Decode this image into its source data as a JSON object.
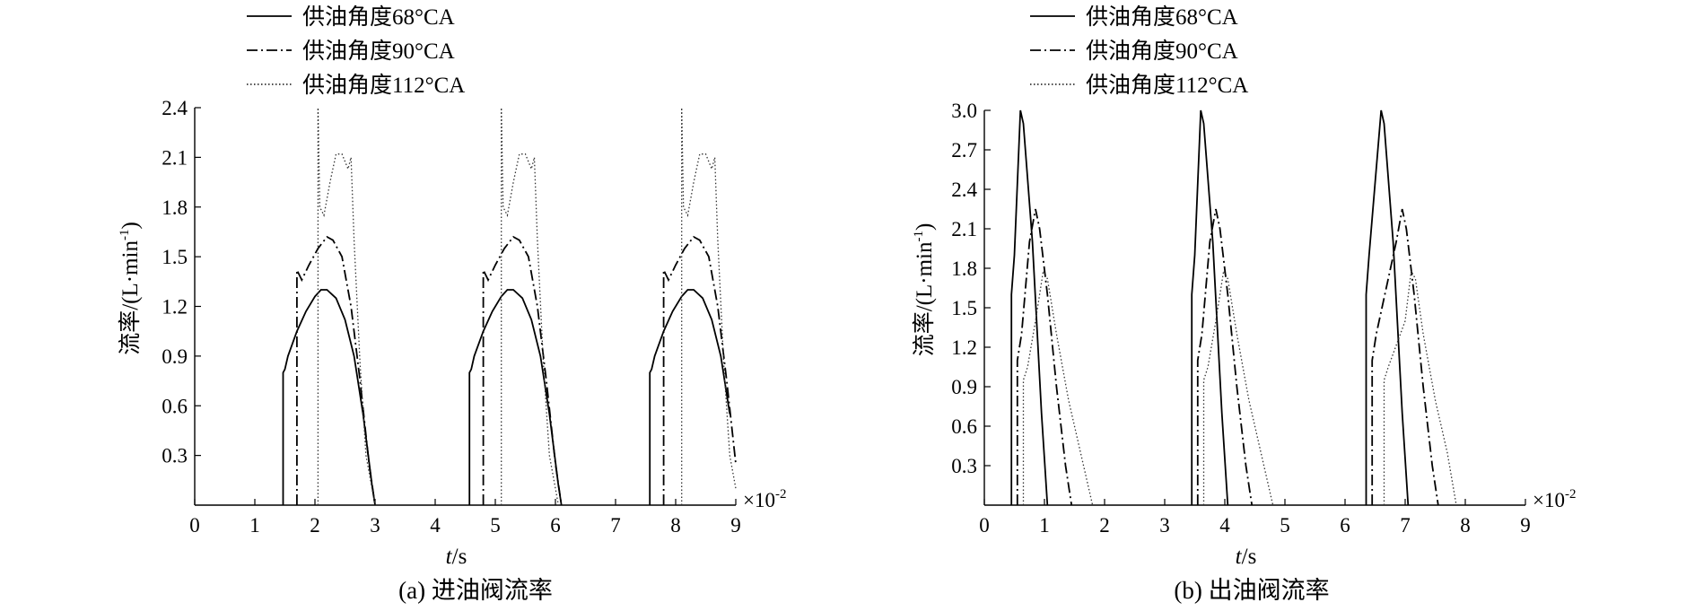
{
  "figure_caption_hidden": "",
  "chart_data": [
    {
      "type": "line",
      "caption": "(a) 进油阀流率",
      "xlabel_italic": "t",
      "xlabel_unit": "/s",
      "ylabel_prefix": "流率/(L·min",
      "ylabel_sup": "-1",
      "ylabel_suffix": ")",
      "x_multiplier_base": "×10",
      "x_multiplier_exp": "-2",
      "xlim": [
        0,
        9
      ],
      "ylim": [
        0,
        2.4
      ],
      "xticks": [
        "0",
        "1",
        "2",
        "3",
        "4",
        "5",
        "6",
        "7",
        "8",
        "9"
      ],
      "yticks": [
        "0.3",
        "0.6",
        "0.9",
        "1.2",
        "1.5",
        "1.8",
        "2.1",
        "2.4"
      ],
      "ytick_values": [
        0.3,
        0.6,
        0.9,
        1.2,
        1.5,
        1.8,
        2.1,
        2.4
      ],
      "series": [
        {
          "name": "供油角度68°CA",
          "style": "solid",
          "color": "#000000",
          "cycles": [
            [
              [
                1.47,
                0
              ],
              [
                1.47,
                0.8
              ],
              [
                1.5,
                0.82
              ],
              [
                1.55,
                0.9
              ],
              [
                1.7,
                1.05
              ],
              [
                1.85,
                1.17
              ],
              [
                2.0,
                1.26
              ],
              [
                2.1,
                1.3
              ],
              [
                2.2,
                1.3
              ],
              [
                2.35,
                1.25
              ],
              [
                2.5,
                1.12
              ],
              [
                2.65,
                0.9
              ],
              [
                2.8,
                0.55
              ],
              [
                2.95,
                0.12
              ],
              [
                3.0,
                0
              ]
            ],
            [
              [
                4.57,
                0
              ],
              [
                4.57,
                0.8
              ],
              [
                4.6,
                0.82
              ],
              [
                4.65,
                0.9
              ],
              [
                4.8,
                1.05
              ],
              [
                4.95,
                1.17
              ],
              [
                5.1,
                1.26
              ],
              [
                5.2,
                1.3
              ],
              [
                5.3,
                1.3
              ],
              [
                5.45,
                1.25
              ],
              [
                5.6,
                1.12
              ],
              [
                5.75,
                0.9
              ],
              [
                5.9,
                0.55
              ],
              [
                6.05,
                0.12
              ],
              [
                6.1,
                0
              ]
            ],
            [
              [
                7.57,
                0
              ],
              [
                7.57,
                0.8
              ],
              [
                7.6,
                0.82
              ],
              [
                7.65,
                0.9
              ],
              [
                7.8,
                1.05
              ],
              [
                7.95,
                1.17
              ],
              [
                8.1,
                1.26
              ],
              [
                8.2,
                1.3
              ],
              [
                8.3,
                1.3
              ],
              [
                8.45,
                1.25
              ],
              [
                8.6,
                1.12
              ],
              [
                8.75,
                0.9
              ],
              [
                8.9,
                0.55
              ],
              [
                9.05,
                0.12
              ],
              [
                9.1,
                0
              ]
            ]
          ]
        },
        {
          "name": "供油角度90°CA",
          "style": "dashdot",
          "color": "#000000",
          "cycles": [
            [
              [
                1.7,
                0
              ],
              [
                1.7,
                1.42
              ],
              [
                1.78,
                1.36
              ],
              [
                1.9,
                1.45
              ],
              [
                2.05,
                1.55
              ],
              [
                2.2,
                1.62
              ],
              [
                2.3,
                1.6
              ],
              [
                2.45,
                1.5
              ],
              [
                2.6,
                1.2
              ],
              [
                2.75,
                0.75
              ],
              [
                2.9,
                0.25
              ],
              [
                3.0,
                0
              ]
            ],
            [
              [
                4.8,
                0
              ],
              [
                4.8,
                1.42
              ],
              [
                4.88,
                1.36
              ],
              [
                5.0,
                1.45
              ],
              [
                5.15,
                1.55
              ],
              [
                5.3,
                1.62
              ],
              [
                5.4,
                1.6
              ],
              [
                5.55,
                1.5
              ],
              [
                5.7,
                1.2
              ],
              [
                5.85,
                0.75
              ],
              [
                6.0,
                0.25
              ],
              [
                6.1,
                0
              ]
            ],
            [
              [
                7.8,
                0
              ],
              [
                7.8,
                1.42
              ],
              [
                7.88,
                1.36
              ],
              [
                8.0,
                1.45
              ],
              [
                8.15,
                1.55
              ],
              [
                8.3,
                1.62
              ],
              [
                8.4,
                1.6
              ],
              [
                8.55,
                1.5
              ],
              [
                8.7,
                1.2
              ],
              [
                8.85,
                0.75
              ],
              [
                9.0,
                0.25
              ],
              [
                9.1,
                0
              ]
            ]
          ]
        },
        {
          "name": "供油角度112°CA",
          "style": "dotted",
          "color": "#333333",
          "cycles": [
            [
              [
                2.05,
                0
              ],
              [
                2.05,
                2.4
              ],
              [
                2.08,
                1.8
              ],
              [
                2.15,
                1.75
              ],
              [
                2.25,
                1.95
              ],
              [
                2.35,
                2.12
              ],
              [
                2.45,
                2.12
              ],
              [
                2.55,
                2.03
              ],
              [
                2.6,
                2.1
              ],
              [
                2.65,
                1.6
              ],
              [
                2.75,
                0.85
              ],
              [
                2.85,
                0.3
              ],
              [
                2.95,
                0.1
              ],
              [
                3.0,
                0
              ]
            ],
            [
              [
                5.1,
                0
              ],
              [
                5.1,
                2.4
              ],
              [
                5.13,
                1.8
              ],
              [
                5.2,
                1.75
              ],
              [
                5.3,
                1.95
              ],
              [
                5.4,
                2.12
              ],
              [
                5.5,
                2.12
              ],
              [
                5.6,
                2.03
              ],
              [
                5.65,
                2.1
              ],
              [
                5.7,
                1.6
              ],
              [
                5.8,
                0.85
              ],
              [
                5.9,
                0.3
              ],
              [
                6.0,
                0.1
              ],
              [
                6.05,
                0
              ]
            ],
            [
              [
                8.1,
                0
              ],
              [
                8.1,
                2.4
              ],
              [
                8.13,
                1.8
              ],
              [
                8.2,
                1.75
              ],
              [
                8.3,
                1.95
              ],
              [
                8.4,
                2.12
              ],
              [
                8.5,
                2.12
              ],
              [
                8.6,
                2.03
              ],
              [
                8.65,
                2.1
              ],
              [
                8.7,
                1.6
              ],
              [
                8.8,
                0.85
              ],
              [
                8.9,
                0.3
              ],
              [
                9.0,
                0.1
              ],
              [
                9.05,
                0
              ]
            ]
          ]
        }
      ]
    },
    {
      "type": "line",
      "caption": "(b) 出油阀流率",
      "xlabel_italic": "t",
      "xlabel_unit": "/s",
      "ylabel_prefix": "流率/(L·min",
      "ylabel_sup": "-1",
      "ylabel_suffix": ")",
      "x_multiplier_base": "×10",
      "x_multiplier_exp": "-2",
      "xlim": [
        0,
        9
      ],
      "ylim": [
        0,
        3.0
      ],
      "xticks": [
        "0",
        "1",
        "2",
        "3",
        "4",
        "5",
        "6",
        "7",
        "8",
        "9"
      ],
      "yticks": [
        "0.3",
        "0.6",
        "0.9",
        "1.2",
        "1.5",
        "1.8",
        "2.1",
        "2.4",
        "2.7",
        "3.0"
      ],
      "ytick_values": [
        0.3,
        0.6,
        0.9,
        1.2,
        1.5,
        1.8,
        2.1,
        2.4,
        2.7,
        3.0
      ],
      "series": [
        {
          "name": "供油角度68°CA",
          "style": "solid",
          "color": "#000000",
          "cycles": [
            [
              [
                0.45,
                0
              ],
              [
                0.45,
                1.6
              ],
              [
                0.5,
                1.9
              ],
              [
                0.6,
                3.0
              ],
              [
                0.65,
                2.9
              ],
              [
                0.8,
                2.0
              ],
              [
                0.95,
                0.7
              ],
              [
                1.05,
                0
              ]
            ],
            [
              [
                3.45,
                0
              ],
              [
                3.45,
                1.6
              ],
              [
                3.5,
                1.9
              ],
              [
                3.6,
                3.0
              ],
              [
                3.65,
                2.9
              ],
              [
                3.8,
                2.0
              ],
              [
                3.95,
                0.7
              ],
              [
                4.05,
                0
              ]
            ],
            [
              [
                6.35,
                0
              ],
              [
                6.35,
                1.6
              ],
              [
                6.4,
                1.9
              ],
              [
                6.6,
                3.0
              ],
              [
                6.65,
                2.9
              ],
              [
                6.8,
                2.0
              ],
              [
                6.95,
                0.7
              ],
              [
                7.05,
                0
              ]
            ]
          ]
        },
        {
          "name": "供油角度90°CA",
          "style": "dashdot",
          "color": "#000000",
          "cycles": [
            [
              [
                0.55,
                0
              ],
              [
                0.55,
                1.1
              ],
              [
                0.62,
                1.3
              ],
              [
                0.75,
                2.0
              ],
              [
                0.85,
                2.25
              ],
              [
                0.92,
                2.1
              ],
              [
                1.05,
                1.6
              ],
              [
                1.2,
                0.9
              ],
              [
                1.35,
                0.3
              ],
              [
                1.45,
                0
              ]
            ],
            [
              [
                3.55,
                0
              ],
              [
                3.55,
                1.1
              ],
              [
                3.62,
                1.3
              ],
              [
                3.75,
                2.0
              ],
              [
                3.85,
                2.25
              ],
              [
                3.92,
                2.1
              ],
              [
                4.05,
                1.6
              ],
              [
                4.2,
                0.9
              ],
              [
                4.35,
                0.3
              ],
              [
                4.45,
                0
              ]
            ],
            [
              [
                6.45,
                0
              ],
              [
                6.45,
                1.1
              ],
              [
                6.52,
                1.3
              ],
              [
                6.85,
                2.0
              ],
              [
                6.95,
                2.25
              ],
              [
                7.02,
                2.1
              ],
              [
                7.15,
                1.6
              ],
              [
                7.3,
                0.9
              ],
              [
                7.45,
                0.3
              ],
              [
                7.55,
                0
              ]
            ]
          ]
        },
        {
          "name": "供油角度112°CA",
          "style": "dotted",
          "color": "#333333",
          "cycles": [
            [
              [
                0.65,
                0
              ],
              [
                0.65,
                0.95
              ],
              [
                0.72,
                1.05
              ],
              [
                0.85,
                1.4
              ],
              [
                0.98,
                1.78
              ],
              [
                1.05,
                1.72
              ],
              [
                1.2,
                1.3
              ],
              [
                1.4,
                0.8
              ],
              [
                1.6,
                0.4
              ],
              [
                1.8,
                0
              ]
            ],
            [
              [
                3.65,
                0
              ],
              [
                3.65,
                0.95
              ],
              [
                3.72,
                1.05
              ],
              [
                3.85,
                1.4
              ],
              [
                3.98,
                1.78
              ],
              [
                4.05,
                1.72
              ],
              [
                4.2,
                1.3
              ],
              [
                4.4,
                0.8
              ],
              [
                4.6,
                0.4
              ],
              [
                4.8,
                0
              ]
            ],
            [
              [
                6.65,
                0
              ],
              [
                6.65,
                0.95
              ],
              [
                6.72,
                1.05
              ],
              [
                7.0,
                1.4
              ],
              [
                7.1,
                1.78
              ],
              [
                7.17,
                1.72
              ],
              [
                7.3,
                1.3
              ],
              [
                7.5,
                0.8
              ],
              [
                7.7,
                0.4
              ],
              [
                7.85,
                0
              ]
            ]
          ]
        }
      ]
    }
  ]
}
